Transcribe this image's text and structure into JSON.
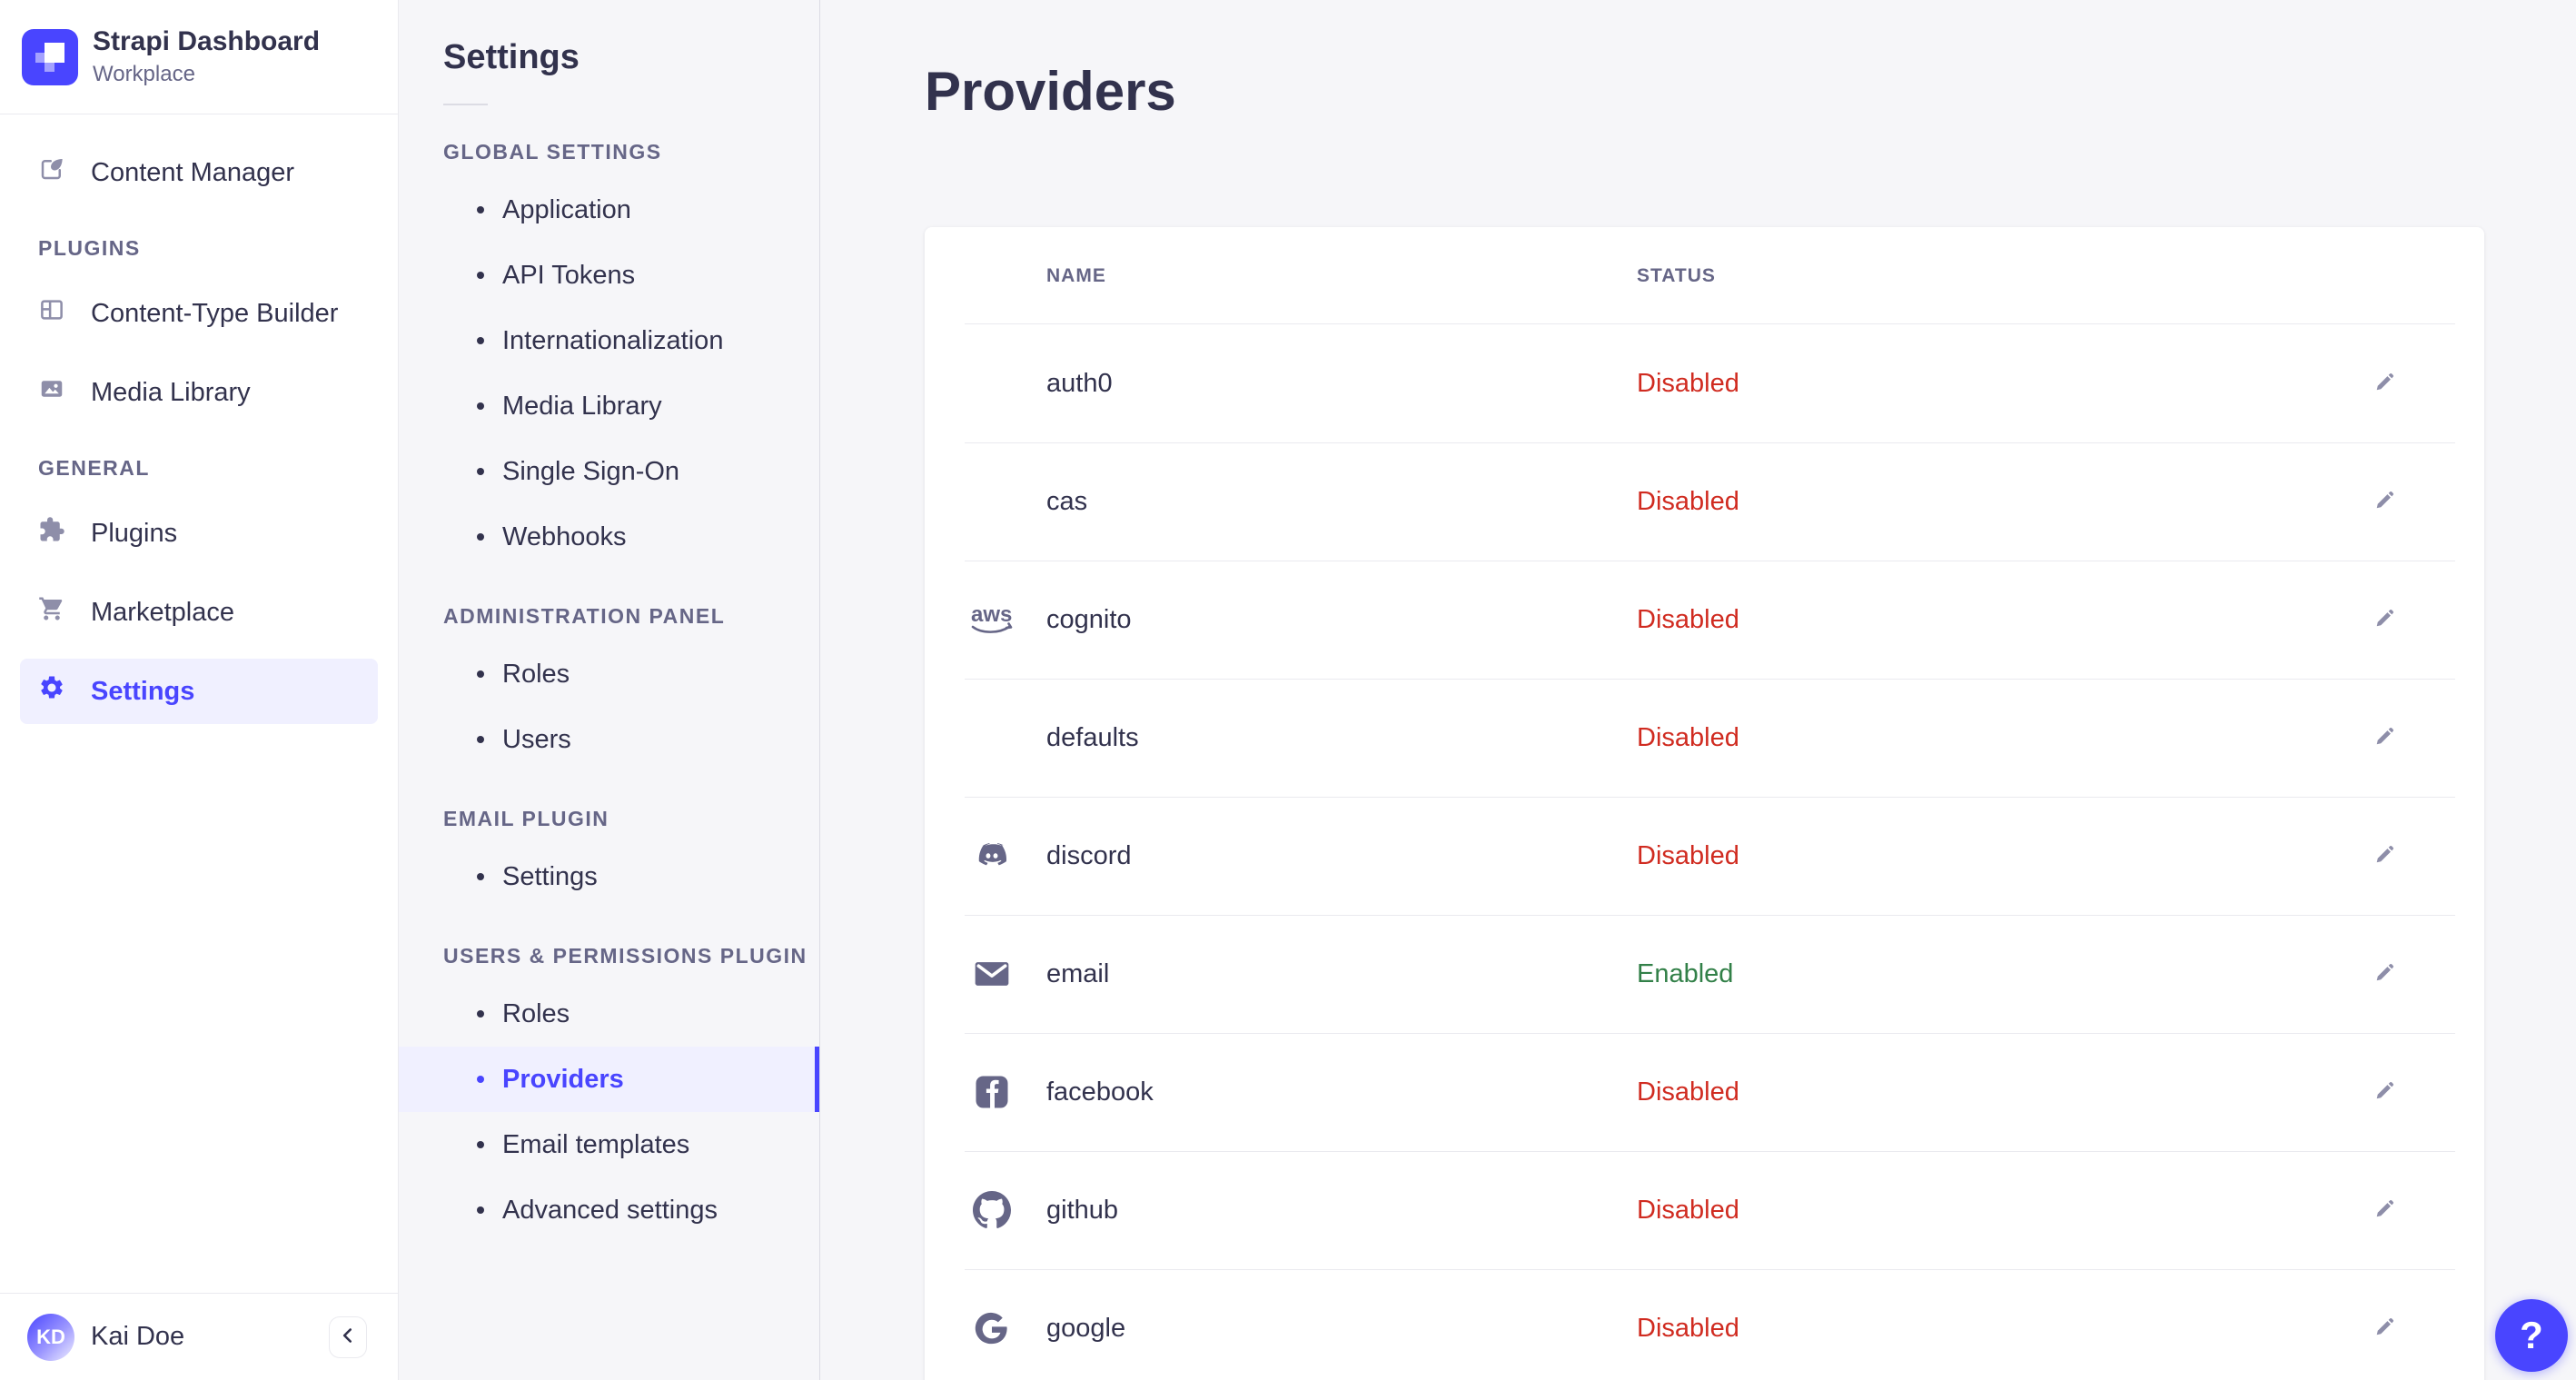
{
  "brand": {
    "title": "Strapi Dashboard",
    "subtitle": "Workplace"
  },
  "sidebar": {
    "primary": [
      {
        "label": "Content Manager",
        "icon": "content-manager"
      }
    ],
    "sections": [
      {
        "label": "PLUGINS",
        "items": [
          {
            "label": "Content-Type Builder",
            "icon": "content-type-builder"
          },
          {
            "label": "Media Library",
            "icon": "media-library"
          }
        ]
      },
      {
        "label": "GENERAL",
        "items": [
          {
            "label": "Plugins",
            "icon": "puzzle"
          },
          {
            "label": "Marketplace",
            "icon": "cart"
          },
          {
            "label": "Settings",
            "icon": "gear",
            "active": true
          }
        ]
      }
    ],
    "user": {
      "name": "Kai Doe",
      "initials": "KD"
    }
  },
  "subnav": {
    "title": "Settings",
    "sections": [
      {
        "label": "GLOBAL SETTINGS",
        "items": [
          {
            "label": "Application"
          },
          {
            "label": "API Tokens"
          },
          {
            "label": "Internationalization"
          },
          {
            "label": "Media Library"
          },
          {
            "label": "Single Sign-On"
          },
          {
            "label": "Webhooks"
          }
        ]
      },
      {
        "label": "ADMINISTRATION PANEL",
        "items": [
          {
            "label": "Roles"
          },
          {
            "label": "Users"
          }
        ]
      },
      {
        "label": "EMAIL PLUGIN",
        "items": [
          {
            "label": "Settings"
          }
        ]
      },
      {
        "label": "USERS & PERMISSIONS PLUGIN",
        "items": [
          {
            "label": "Roles"
          },
          {
            "label": "Providers",
            "active": true
          },
          {
            "label": "Email templates"
          },
          {
            "label": "Advanced settings"
          }
        ]
      }
    ]
  },
  "main": {
    "title": "Providers",
    "table": {
      "columns": [
        "NAME",
        "STATUS"
      ],
      "rows": [
        {
          "name": "auth0",
          "icon": null,
          "status": "Disabled"
        },
        {
          "name": "cas",
          "icon": null,
          "status": "Disabled"
        },
        {
          "name": "cognito",
          "icon": "aws",
          "status": "Disabled"
        },
        {
          "name": "defaults",
          "icon": null,
          "status": "Disabled"
        },
        {
          "name": "discord",
          "icon": "discord",
          "status": "Disabled"
        },
        {
          "name": "email",
          "icon": "envelope",
          "status": "Enabled"
        },
        {
          "name": "facebook",
          "icon": "facebook",
          "status": "Disabled"
        },
        {
          "name": "github",
          "icon": "github",
          "status": "Disabled"
        },
        {
          "name": "google",
          "icon": "google",
          "status": "Disabled"
        }
      ]
    }
  },
  "help": {
    "label": "?"
  },
  "colors": {
    "accent": "#4945ff",
    "accent_bg": "#f0f0ff",
    "danger": "#d02b20",
    "success": "#328048",
    "page_bg": "#f6f6f9",
    "border": "#eaeaef",
    "text": "#32324d",
    "muted": "#666687"
  }
}
